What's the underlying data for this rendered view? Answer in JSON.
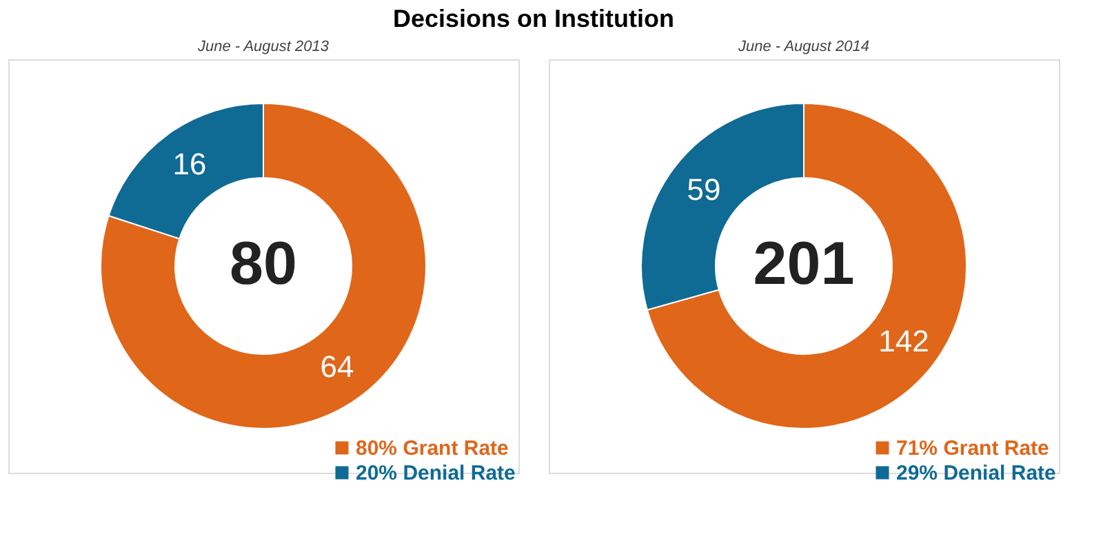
{
  "chart_data": [
    {
      "type": "donut",
      "title": "Decisions on Institution",
      "subtitle": "June - August 2013",
      "categories": [
        "80% Grant Rate",
        "20% Denial Rate"
      ],
      "values": [
        64,
        16
      ],
      "colors": [
        "#e0661a",
        "#0f6a94"
      ],
      "data_labels": true,
      "legend": "bottom right",
      "annotations": [
        "80"
      ]
    },
    {
      "type": "donut",
      "subtitle": "June - August 2014",
      "categories": [
        "71% Grant Rate",
        "29% Denial Rate"
      ],
      "values": [
        142,
        59
      ],
      "colors": [
        "#e0661a",
        "#0f6a94"
      ],
      "data_labels": true,
      "legend": "bottom right",
      "annotations": [
        "201"
      ]
    }
  ]
}
